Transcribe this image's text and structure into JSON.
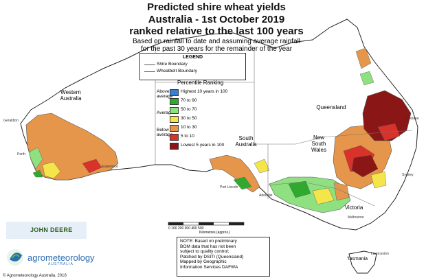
{
  "title": {
    "line1": "Predicted shire wheat yields",
    "line2": "Australia - 1st October 2019",
    "line3": "ranked relative to the last 100 years"
  },
  "subtitle": {
    "line1": "Based on rainfall to date and assuming average rainfall",
    "line2": "for the past 30 years for the remainder of the year"
  },
  "legend": {
    "title": "LEGEND",
    "items": [
      {
        "label": "Shire Boundary",
        "color": "#555555"
      },
      {
        "label": "Wheatbelt Boundary",
        "color": "#b03a2e"
      }
    ]
  },
  "percentile": {
    "title": "Percentile Ranking",
    "groups": {
      "above": "Above average",
      "average": "Average",
      "below": "Below average"
    },
    "items": [
      {
        "label": "Highest 10 years in 100",
        "color": "#3a7fd0"
      },
      {
        "label": "70 to 90",
        "color": "#2faa2f"
      },
      {
        "label": "50 to 70",
        "color": "#8ee080"
      },
      {
        "label": "30 to 50",
        "color": "#f4e64a"
      },
      {
        "label": "10 to 30",
        "color": "#e6964a"
      },
      {
        "label": "5 to 10",
        "color": "#d8322a"
      },
      {
        "label": "Lowest 5 years in 100",
        "color": "#8a1616"
      }
    ]
  },
  "regions": {
    "wa": "Western Australia",
    "sa": "South Australia",
    "qld": "Queensland",
    "nsw": "New South Wales",
    "vic": "Victoria",
    "tas": "Tasmania"
  },
  "towns": [
    "Geraldton",
    "Perth",
    "Esperance",
    "Port Lincoln",
    "Adelaide",
    "Melbourne",
    "Sydney",
    "Brisbane",
    "Launceston"
  ],
  "scale": {
    "ticks": "0   100  200  300  400  500",
    "caption": "Kilometres (approx.)"
  },
  "note": {
    "lines": [
      "NOTE: Based on preliminary",
      "BOM data that has not been",
      "subject to quality control;",
      "Patched by DSITI (Queensland)",
      "Mapped by Geographic",
      "Information Services DAFWA"
    ]
  },
  "branding": {
    "john_deere": "JOHN DEERE",
    "agro": "agrometeorology",
    "agro_sub": "AUSTRALIA"
  },
  "copyright": "© Agrometeorology Australia, 2018"
}
